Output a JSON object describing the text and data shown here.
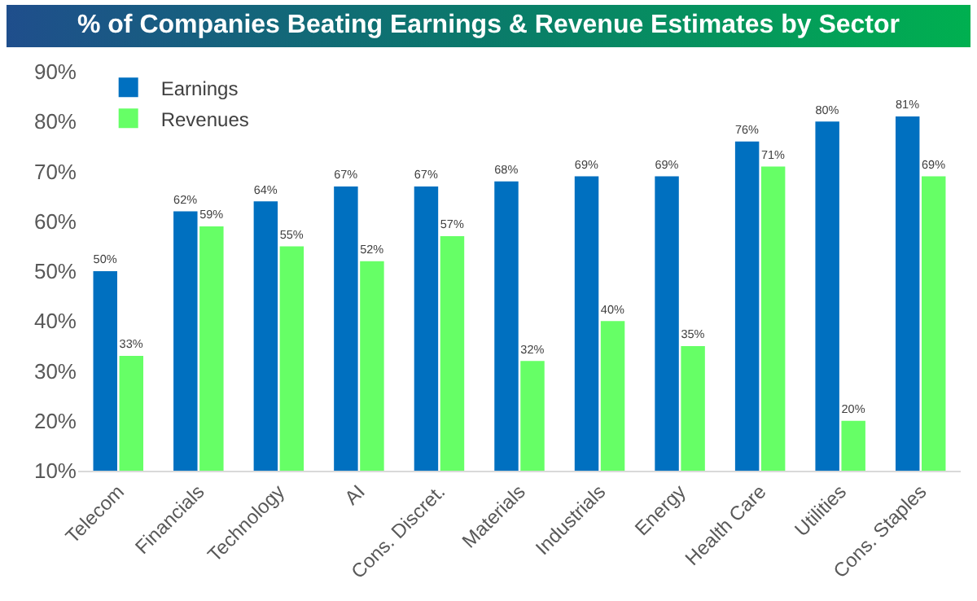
{
  "chart_data": {
    "type": "bar",
    "title": "% of Companies Beating Earnings & Revenue Estimates by Sector",
    "categories": [
      "Telecom",
      "Financials",
      "Technology",
      "AI",
      "Cons. Discret.",
      "Materials",
      "Industrials",
      "Energy",
      "Health Care",
      "Utilities",
      "Cons. Staples"
    ],
    "series": [
      {
        "name": "Earnings",
        "color": "#0070c0",
        "values": [
          50,
          62,
          64,
          67,
          67,
          68,
          69,
          69,
          76,
          80,
          81
        ],
        "value_labels": [
          "50%",
          "62%",
          "64%",
          "67%",
          "67%",
          "68%",
          "69%",
          "69%",
          "76%",
          "80%",
          "81%"
        ]
      },
      {
        "name": "Revenues",
        "color": "#66ff66",
        "values": [
          33,
          59,
          55,
          52,
          57,
          32,
          40,
          35,
          71,
          20,
          69
        ],
        "value_labels": [
          "33%",
          "59%",
          "55%",
          "52%",
          "57%",
          "32%",
          "40%",
          "35%",
          "71%",
          "20%",
          "69%"
        ]
      }
    ],
    "ylim": [
      10,
      90
    ],
    "yticks": [
      {
        "value": 10,
        "label": "10%"
      },
      {
        "value": 20,
        "label": "20%"
      },
      {
        "value": 30,
        "label": "30%"
      },
      {
        "value": 40,
        "label": "40%"
      },
      {
        "value": 50,
        "label": "50%"
      },
      {
        "value": 60,
        "label": "60%"
      },
      {
        "value": 70,
        "label": "70%"
      },
      {
        "value": 80,
        "label": "80%"
      },
      {
        "value": 90,
        "label": "90%"
      }
    ],
    "grid": false,
    "legend": "top left"
  }
}
